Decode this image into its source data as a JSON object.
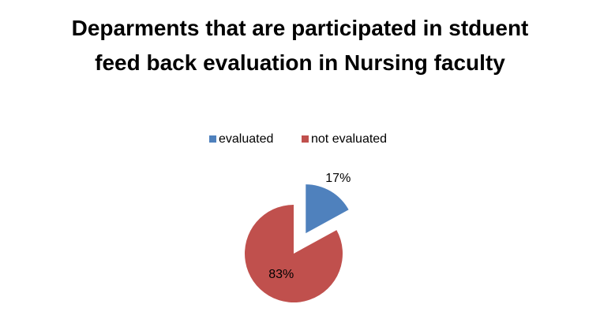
{
  "chart_data": {
    "type": "pie",
    "title": "Deparments that are participated in stduent feed back evaluation in Nursing faculty",
    "categories": [
      "evaluated",
      "not evaluated"
    ],
    "values": [
      17,
      83
    ],
    "value_labels": [
      "17%",
      "83%"
    ],
    "colors": [
      "#4f81bd",
      "#c0504d"
    ],
    "legend": "top"
  }
}
